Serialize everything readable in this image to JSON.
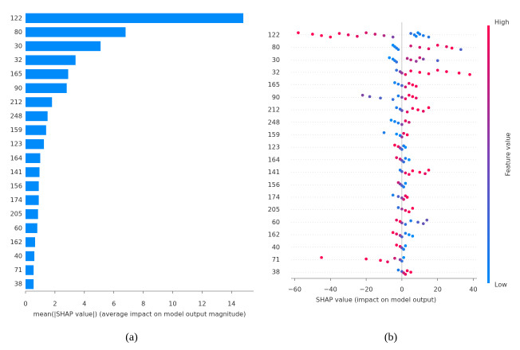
{
  "chart_data": [
    {
      "type": "hbar",
      "panel_label": "(a)",
      "x_label": "mean(|SHAP value|) (average impact on model output magnitude)",
      "categories": [
        "122",
        "80",
        "30",
        "32",
        "165",
        "90",
        "212",
        "248",
        "159",
        "123",
        "164",
        "141",
        "156",
        "174",
        "205",
        "60",
        "162",
        "40",
        "71",
        "38"
      ],
      "values": [
        14.8,
        6.8,
        5.1,
        3.4,
        2.9,
        2.8,
        1.8,
        1.5,
        1.4,
        1.25,
        1.0,
        0.95,
        0.9,
        0.9,
        0.85,
        0.8,
        0.65,
        0.6,
        0.55,
        0.55
      ],
      "color": "#008bfb",
      "xlim": [
        0,
        15.5
      ],
      "xticks": [
        0,
        2,
        4,
        6,
        8,
        10,
        12,
        14
      ]
    },
    {
      "type": "beeswarm",
      "panel_label": "(b)",
      "x_label": "SHAP value (impact on model output)",
      "xlim": [
        -62,
        42
      ],
      "xticks": [
        {
          "value": -60,
          "label": "−60"
        },
        {
          "value": -40,
          "label": "−40"
        },
        {
          "value": -20,
          "label": "−20"
        },
        0,
        20,
        40
      ],
      "colorbar": {
        "high": "High",
        "low": "Low",
        "label": "Feature value",
        "colors": [
          "#008bfb",
          "#ff0052"
        ]
      },
      "rows": [
        {
          "name": "122",
          "x": [
            -58,
            -50,
            -45,
            -40,
            -35,
            -30,
            -25,
            -20,
            -15,
            -10,
            -5,
            5,
            7,
            8,
            9,
            10,
            12,
            15
          ],
          "f": [
            1,
            1,
            1,
            1,
            0.95,
            0.9,
            0.9,
            0.85,
            0.8,
            0.7,
            0.5,
            0.2,
            0.1,
            0.05,
            0.05,
            0.1,
            0.1,
            0.15
          ]
        },
        {
          "name": "80",
          "x": [
            -5,
            -4,
            -3,
            -2,
            5,
            10,
            15,
            20,
            25,
            28,
            33
          ],
          "f": [
            0,
            0.05,
            0.1,
            0.1,
            0.8,
            0.85,
            0.9,
            0.95,
            0.9,
            1,
            0.3
          ]
        },
        {
          "name": "30",
          "x": [
            -7,
            -5,
            -4,
            -3,
            3,
            5,
            8,
            10,
            12,
            20
          ],
          "f": [
            0,
            0.05,
            0.1,
            0.2,
            0.7,
            0.75,
            0.6,
            0.8,
            0.5,
            0.3
          ]
        },
        {
          "name": "32",
          "x": [
            -3,
            -1,
            0,
            2,
            5,
            10,
            15,
            20,
            25,
            32,
            38
          ],
          "f": [
            0.2,
            0.5,
            0.6,
            0.9,
            0.95,
            1,
            1,
            0.95,
            1,
            1,
            1
          ]
        },
        {
          "name": "165",
          "x": [
            -4,
            -2,
            0,
            2,
            4,
            6,
            8
          ],
          "f": [
            0.05,
            0.1,
            0.3,
            0.8,
            0.9,
            1,
            0.95
          ]
        },
        {
          "name": "90",
          "x": [
            -22,
            -18,
            -12,
            -5,
            -2,
            0,
            2,
            4,
            6,
            8
          ],
          "f": [
            0.5,
            0.4,
            0.3,
            0.2,
            0.1,
            0.5,
            0.9,
            0.95,
            1,
            0.9
          ]
        },
        {
          "name": "212",
          "x": [
            -3,
            -1,
            0,
            3,
            6,
            9,
            12,
            15
          ],
          "f": [
            0.1,
            0.2,
            0.4,
            0.9,
            0.95,
            1,
            0.9,
            1
          ]
        },
        {
          "name": "248",
          "x": [
            -6,
            -4,
            -2,
            0,
            2,
            4
          ],
          "f": [
            0,
            0.05,
            0.1,
            0.5,
            0.9,
            0.8
          ]
        },
        {
          "name": "159",
          "x": [
            -10,
            -3,
            -1,
            0,
            1,
            3
          ],
          "f": [
            0.1,
            0,
            0.05,
            0.6,
            0.9,
            1
          ]
        },
        {
          "name": "123",
          "x": [
            -4,
            -2,
            -1,
            0,
            1,
            2
          ],
          "f": [
            1,
            0.95,
            0.5,
            0.2,
            0.1,
            0
          ]
        },
        {
          "name": "164",
          "x": [
            -3,
            -1,
            0,
            1,
            2,
            4
          ],
          "f": [
            0.9,
            0.8,
            0.4,
            0.2,
            0.1,
            0
          ]
        },
        {
          "name": "141",
          "x": [
            -1,
            0,
            2,
            4,
            6,
            10,
            13,
            15
          ],
          "f": [
            0.1,
            0.3,
            0.9,
            0.95,
            1,
            1,
            0.9,
            1
          ]
        },
        {
          "name": "156",
          "x": [
            -2,
            -1,
            0,
            1,
            2
          ],
          "f": [
            0.8,
            0.5,
            0.3,
            0.1,
            0
          ]
        },
        {
          "name": "174",
          "x": [
            -5,
            -2,
            0,
            1,
            2,
            3
          ],
          "f": [
            0.1,
            0.3,
            0.5,
            0.8,
            0.9,
            1
          ]
        },
        {
          "name": "205",
          "x": [
            -2,
            0,
            2,
            4,
            6
          ],
          "f": [
            0.2,
            0.6,
            0.9,
            1,
            1
          ]
        },
        {
          "name": "60",
          "x": [
            -3,
            -1,
            0,
            2,
            5,
            9,
            12,
            14
          ],
          "f": [
            0.9,
            1,
            0.5,
            0.2,
            0.1,
            0.3,
            0.4,
            0.4
          ]
        },
        {
          "name": "162",
          "x": [
            -5,
            -3,
            -1,
            0,
            2,
            4,
            6
          ],
          "f": [
            1,
            0.9,
            0.6,
            0.3,
            0.1,
            0,
            0
          ]
        },
        {
          "name": "40",
          "x": [
            -3,
            -1,
            0,
            1,
            2
          ],
          "f": [
            1,
            0.9,
            0.4,
            0.1,
            0
          ]
        },
        {
          "name": "71",
          "x": [
            -45,
            -20,
            -12,
            -8,
            -4,
            -1,
            0,
            1
          ],
          "f": [
            1,
            1,
            1,
            0.9,
            0.8,
            0.5,
            0.2,
            0
          ]
        },
        {
          "name": "38",
          "x": [
            -2,
            0,
            1,
            2,
            3,
            5
          ],
          "f": [
            0.1,
            0.3,
            0.8,
            0.9,
            1,
            1
          ]
        }
      ]
    }
  ]
}
